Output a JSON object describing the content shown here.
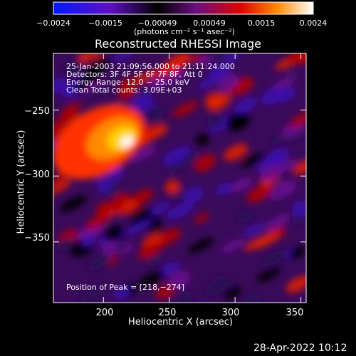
{
  "colorbar": {
    "ticks": [
      "−0.0024",
      "−0.0015",
      "−0.00049",
      "0.00049",
      "0.0015",
      "0.0024"
    ],
    "unit_label": "(photons cm⁻² s⁻¹ asec⁻²)",
    "stops": [
      "#0018ff",
      "#6010c0",
      "#000000",
      "#6a1080",
      "#e00000",
      "#ff8a00",
      "#ffffff"
    ]
  },
  "chart_data": {
    "type": "heatmap",
    "title": "Reconstructed RHESSI Image",
    "xlabel": "Heliocentric X (arcsec)",
    "ylabel": "Heliocentric Y (arcsec)",
    "xlim": [
      162,
      354
    ],
    "ylim": [
      -396,
      -207
    ],
    "x_ticks": [
      200,
      250,
      300,
      350
    ],
    "y_ticks": [
      -250,
      -300,
      -350
    ],
    "x_tick_labels": [
      "200",
      "250",
      "300",
      "350"
    ],
    "y_tick_labels": [
      "−250",
      "−300",
      "−350"
    ],
    "peak": [
      218,
      -274
    ],
    "annotations": [
      "25-Jan-2003 21:09:56.000 to 21:11:24.000",
      "Detectors: 3F 4F 5F 6F 7F 8F, Att 0",
      "Energy Range: 12.0 − 25.0 keV",
      "Clean     Total counts: 3.09E+03"
    ],
    "peak_label": "Position of Peak = [218,−274]"
  },
  "footer": {
    "date": "28-Apr-2022 10:12"
  }
}
